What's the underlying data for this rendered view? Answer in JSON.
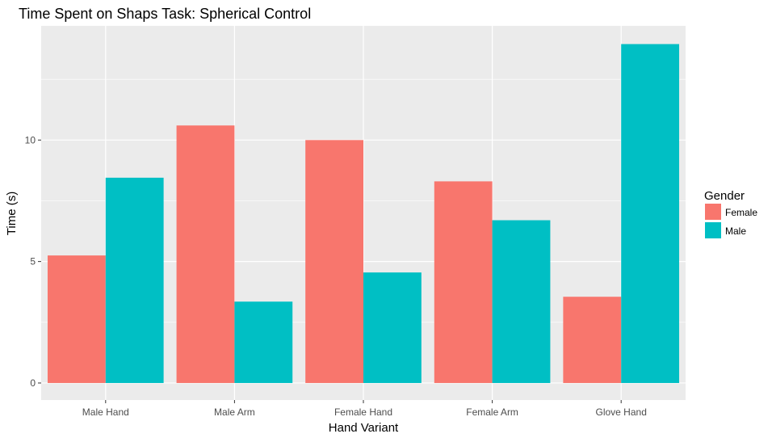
{
  "chart_data": {
    "type": "bar",
    "title": "Time Spent on Shaps Task: Spherical Control",
    "xlabel": "Hand Variant",
    "ylabel": "Time (s)",
    "categories": [
      "Male Hand",
      "Male Arm",
      "Female Hand",
      "Female Arm",
      "Glove Hand"
    ],
    "series": [
      {
        "name": "Female",
        "color": "#F8766D",
        "values": [
          5.25,
          10.6,
          10.0,
          8.3,
          3.55
        ]
      },
      {
        "name": "Male",
        "color": "#00BFC4",
        "values": [
          8.45,
          3.35,
          4.55,
          6.7,
          13.95
        ]
      }
    ],
    "ylim": [
      -0.7,
      14.7
    ],
    "yticks": [
      0,
      5,
      10
    ],
    "ytick_labels": [
      "0",
      "5",
      "10"
    ],
    "grid": true,
    "legend": {
      "title": "Gender",
      "position": "right"
    },
    "panel_background": "#EBEBEB",
    "grid_color": "#FFFFFF"
  }
}
